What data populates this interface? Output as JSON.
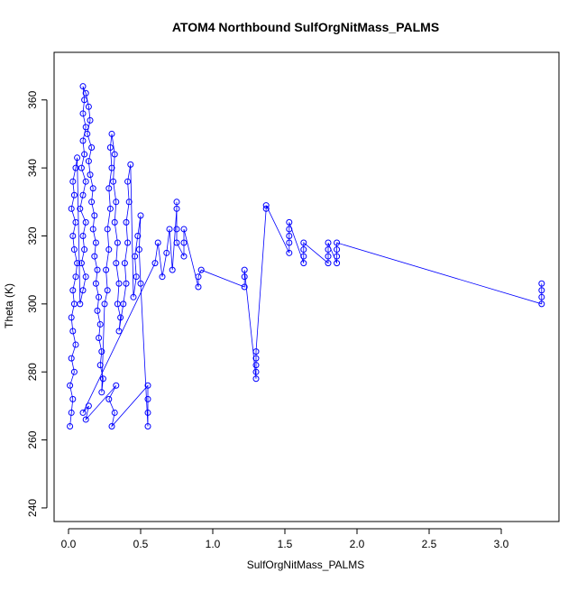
{
  "chart_data": {
    "type": "scatter",
    "title": "ATOM4 Northbound SulfOrgNitMass_PALMS",
    "xlabel": "SulfOrgNitMass_PALMS",
    "ylabel": "Theta (K)",
    "xlim": [
      -0.1,
      3.4
    ],
    "ylim": [
      236,
      374
    ],
    "xticks": [
      0.0,
      0.5,
      1.0,
      1.5,
      2.0,
      2.5,
      3.0
    ],
    "xtick_labels": [
      "0.0",
      "0.5",
      "1.0",
      "1.5",
      "2.0",
      "2.5",
      "3.0"
    ],
    "yticks": [
      240,
      260,
      280,
      300,
      320,
      340,
      360
    ],
    "ytick_labels": [
      "240",
      "260",
      "280",
      "300",
      "320",
      "340",
      "360"
    ],
    "grid": false,
    "legend": "none",
    "marker": "open-circle",
    "color": "#0000ff",
    "series": [
      {
        "values": [
          [
            0.01,
            264
          ],
          [
            0.02,
            268
          ],
          [
            0.03,
            272
          ],
          [
            0.01,
            276
          ],
          [
            0.04,
            280
          ],
          [
            0.02,
            284
          ],
          [
            0.05,
            288
          ],
          [
            0.03,
            292
          ],
          [
            0.02,
            296
          ],
          [
            0.04,
            300
          ],
          [
            0.03,
            304
          ],
          [
            0.05,
            308
          ],
          [
            0.06,
            312
          ],
          [
            0.04,
            316
          ],
          [
            0.03,
            320
          ],
          [
            0.05,
            324
          ],
          [
            0.02,
            328
          ],
          [
            0.04,
            332
          ],
          [
            0.03,
            336
          ],
          [
            0.05,
            340
          ],
          [
            0.06,
            343
          ],
          [
            0.08,
            300
          ],
          [
            0.1,
            304
          ],
          [
            0.12,
            308
          ],
          [
            0.09,
            312
          ],
          [
            0.11,
            316
          ],
          [
            0.1,
            320
          ],
          [
            0.12,
            324
          ],
          [
            0.08,
            328
          ],
          [
            0.1,
            332
          ],
          [
            0.12,
            336
          ],
          [
            0.09,
            340
          ],
          [
            0.11,
            344
          ],
          [
            0.1,
            348
          ],
          [
            0.12,
            352
          ],
          [
            0.1,
            356
          ],
          [
            0.11,
            360
          ],
          [
            0.1,
            364
          ],
          [
            0.12,
            362
          ],
          [
            0.14,
            358
          ],
          [
            0.15,
            354
          ],
          [
            0.13,
            350
          ],
          [
            0.16,
            346
          ],
          [
            0.14,
            342
          ],
          [
            0.15,
            338
          ],
          [
            0.17,
            334
          ],
          [
            0.16,
            330
          ],
          [
            0.18,
            326
          ],
          [
            0.17,
            322
          ],
          [
            0.19,
            318
          ],
          [
            0.18,
            314
          ],
          [
            0.2,
            310
          ],
          [
            0.19,
            306
          ],
          [
            0.21,
            302
          ],
          [
            0.2,
            298
          ],
          [
            0.22,
            294
          ],
          [
            0.21,
            290
          ],
          [
            0.23,
            286
          ],
          [
            0.22,
            282
          ],
          [
            0.24,
            278
          ],
          [
            0.23,
            274
          ],
          [
            0.25,
            300
          ],
          [
            0.27,
            304
          ],
          [
            0.26,
            310
          ],
          [
            0.28,
            316
          ],
          [
            0.27,
            322
          ],
          [
            0.29,
            328
          ],
          [
            0.28,
            334
          ],
          [
            0.3,
            340
          ],
          [
            0.29,
            346
          ],
          [
            0.3,
            350
          ],
          [
            0.32,
            344
          ],
          [
            0.31,
            336
          ],
          [
            0.33,
            330
          ],
          [
            0.32,
            324
          ],
          [
            0.34,
            318
          ],
          [
            0.33,
            312
          ],
          [
            0.35,
            306
          ],
          [
            0.34,
            300
          ],
          [
            0.36,
            296
          ],
          [
            0.35,
            292
          ],
          [
            0.38,
            300
          ],
          [
            0.4,
            306
          ],
          [
            0.39,
            312
          ],
          [
            0.41,
            318
          ],
          [
            0.4,
            324
          ],
          [
            0.42,
            330
          ],
          [
            0.41,
            336
          ],
          [
            0.43,
            341
          ],
          [
            0.45,
            302
          ],
          [
            0.47,
            308
          ],
          [
            0.46,
            314
          ],
          [
            0.48,
            320
          ],
          [
            0.5,
            326
          ],
          [
            0.49,
            316
          ],
          [
            0.5,
            306
          ],
          [
            0.55,
            264
          ],
          [
            0.55,
            268
          ],
          [
            0.55,
            272
          ],
          [
            0.55,
            276
          ],
          [
            0.3,
            264
          ],
          [
            0.32,
            268
          ],
          [
            0.28,
            272
          ],
          [
            0.33,
            276
          ],
          [
            0.12,
            266
          ],
          [
            0.14,
            270
          ],
          [
            0.1,
            268
          ],
          [
            0.6,
            312
          ],
          [
            0.62,
            318
          ],
          [
            0.65,
            308
          ],
          [
            0.68,
            315
          ],
          [
            0.7,
            322
          ],
          [
            0.72,
            310
          ],
          [
            0.75,
            328
          ],
          [
            0.75,
            330
          ],
          [
            0.75,
            322
          ],
          [
            0.75,
            318
          ],
          [
            0.8,
            314
          ],
          [
            0.8,
            318
          ],
          [
            0.8,
            322
          ],
          [
            0.9,
            305
          ],
          [
            0.9,
            308
          ],
          [
            0.92,
            310
          ],
          [
            1.22,
            305
          ],
          [
            1.22,
            308
          ],
          [
            1.22,
            310
          ],
          [
            1.3,
            278
          ],
          [
            1.3,
            280
          ],
          [
            1.3,
            282
          ],
          [
            1.3,
            284
          ],
          [
            1.3,
            286
          ],
          [
            1.37,
            328
          ],
          [
            1.37,
            329
          ],
          [
            1.53,
            315
          ],
          [
            1.53,
            318
          ],
          [
            1.53,
            320
          ],
          [
            1.53,
            322
          ],
          [
            1.53,
            324
          ],
          [
            1.63,
            312
          ],
          [
            1.63,
            314
          ],
          [
            1.63,
            316
          ],
          [
            1.63,
            318
          ],
          [
            1.8,
            312
          ],
          [
            1.8,
            314
          ],
          [
            1.8,
            316
          ],
          [
            1.8,
            318
          ],
          [
            1.86,
            312
          ],
          [
            1.86,
            314
          ],
          [
            1.86,
            316
          ],
          [
            1.86,
            318
          ],
          [
            3.28,
            300
          ],
          [
            3.28,
            302
          ],
          [
            3.28,
            304
          ],
          [
            3.28,
            306
          ]
        ]
      }
    ]
  }
}
